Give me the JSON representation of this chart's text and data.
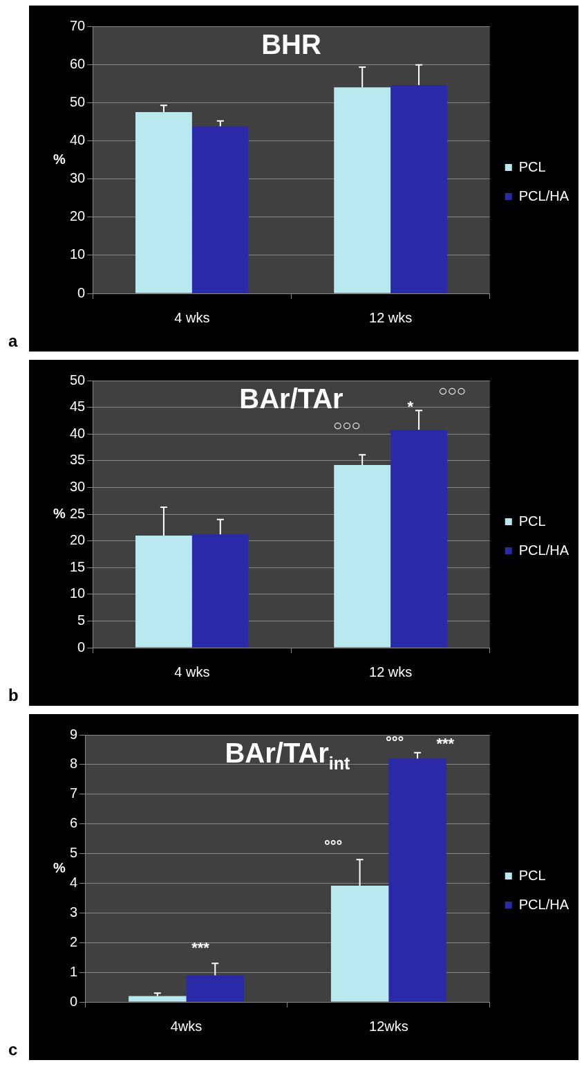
{
  "chart_data": [
    {
      "type": "bar",
      "title": "BHR",
      "ylabel": "%",
      "categories": [
        "4 wks",
        "12 wks"
      ],
      "series": [
        {
          "name": "PCL",
          "color": "#b9e9ee",
          "values": [
            47.5,
            54.0
          ],
          "errors": [
            [
              47.5,
              49.3
            ],
            [
              54.0,
              59.3
            ]
          ]
        },
        {
          "name": "PCL/HA",
          "color": "#2a2aa8",
          "values": [
            43.8,
            54.6
          ],
          "errors": [
            [
              43.8,
              45.2
            ],
            [
              54.6,
              59.9
            ]
          ]
        }
      ],
      "ylim": [
        0,
        70
      ],
      "yticks": [
        0,
        10,
        20,
        30,
        40,
        50,
        60,
        70
      ],
      "grid": "y",
      "legend": "right",
      "annotations": [
        "a"
      ]
    },
    {
      "type": "bar",
      "title": "BAr/TAr",
      "ylabel": "%",
      "categories": [
        "4 wks",
        "12 wks"
      ],
      "series": [
        {
          "name": "PCL",
          "color": "#b9e9ee",
          "values": [
            21.0,
            34.2
          ],
          "errors": [
            [
              21.0,
              26.3
            ],
            [
              34.2,
              36.1
            ]
          ]
        },
        {
          "name": "PCL/HA",
          "color": "#2a2aa8",
          "values": [
            21.2,
            40.8
          ],
          "errors": [
            [
              21.2,
              24.0
            ],
            [
              40.8,
              44.4
            ]
          ]
        }
      ],
      "ylim": [
        0,
        50
      ],
      "yticks": [
        0,
        5,
        10,
        15,
        20,
        25,
        30,
        35,
        40,
        45,
        50
      ],
      "grid": "y",
      "legend": "right",
      "annotations": [
        "b",
        "○○○",
        "*",
        "○○○"
      ]
    },
    {
      "type": "bar",
      "title": "BAr/TAr$_{int}$",
      "ylabel": "%",
      "categories": [
        "4wks",
        "12wks"
      ],
      "series": [
        {
          "name": "PCL",
          "color": "#b9e9ee",
          "values": [
            0.2,
            3.92
          ],
          "errors": [
            [
              0.2,
              0.3
            ],
            [
              3.92,
              4.8
            ]
          ]
        },
        {
          "name": "PCL/HA",
          "color": "#2a2aa8",
          "values": [
            0.9,
            8.2
          ],
          "errors": [
            [
              0.9,
              1.3
            ],
            [
              8.2,
              8.4
            ]
          ]
        }
      ],
      "ylim": [
        0,
        9
      ],
      "yticks": [
        0,
        1,
        2,
        3,
        4,
        5,
        6,
        7,
        8,
        9
      ],
      "grid": "y",
      "legend": "right",
      "annotations": [
        "c",
        "***",
        "°°°",
        "°°°",
        "***"
      ]
    }
  ]
}
